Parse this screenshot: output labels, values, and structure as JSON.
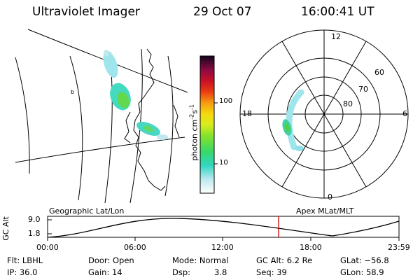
{
  "header": {
    "title": "Ultraviolet Imager",
    "date": "29 Oct 07",
    "time": "16:00:41 UT"
  },
  "colorbar": {
    "label": "photon cm",
    "label_exp1": "-2",
    "label_mid": "s",
    "label_exp2": "-1",
    "ticks": [
      "100",
      "10"
    ]
  },
  "polar": {
    "top": "12",
    "left": "18",
    "right": "6",
    "bottom": "0",
    "rings": [
      "60",
      "70",
      "80"
    ]
  },
  "timeline": {
    "left_label": "Geographic Lat/Lon",
    "right_label": "Apex MLat/MLT",
    "axis_label": "GC Alt",
    "y_top": "9.0",
    "y_bottom": "1.8",
    "x_ticks": [
      "00:00",
      "06:00",
      "12:00",
      "18:00",
      "23:59"
    ],
    "marker_color": "#cc0000"
  },
  "info": {
    "flt": "Flt: LBHL",
    "ip": "IP: 36.0",
    "door": "Door: Open",
    "gain": "Gain: 14",
    "mode": "Mode: Normal",
    "dsp_label": "Dsp:",
    "dsp_value": "3.8",
    "gcalt": "GC Alt: 6.2 Re",
    "seq": "Seq: 39",
    "glat": "GLat: −56.8",
    "glon": "GLon:  58.9"
  }
}
